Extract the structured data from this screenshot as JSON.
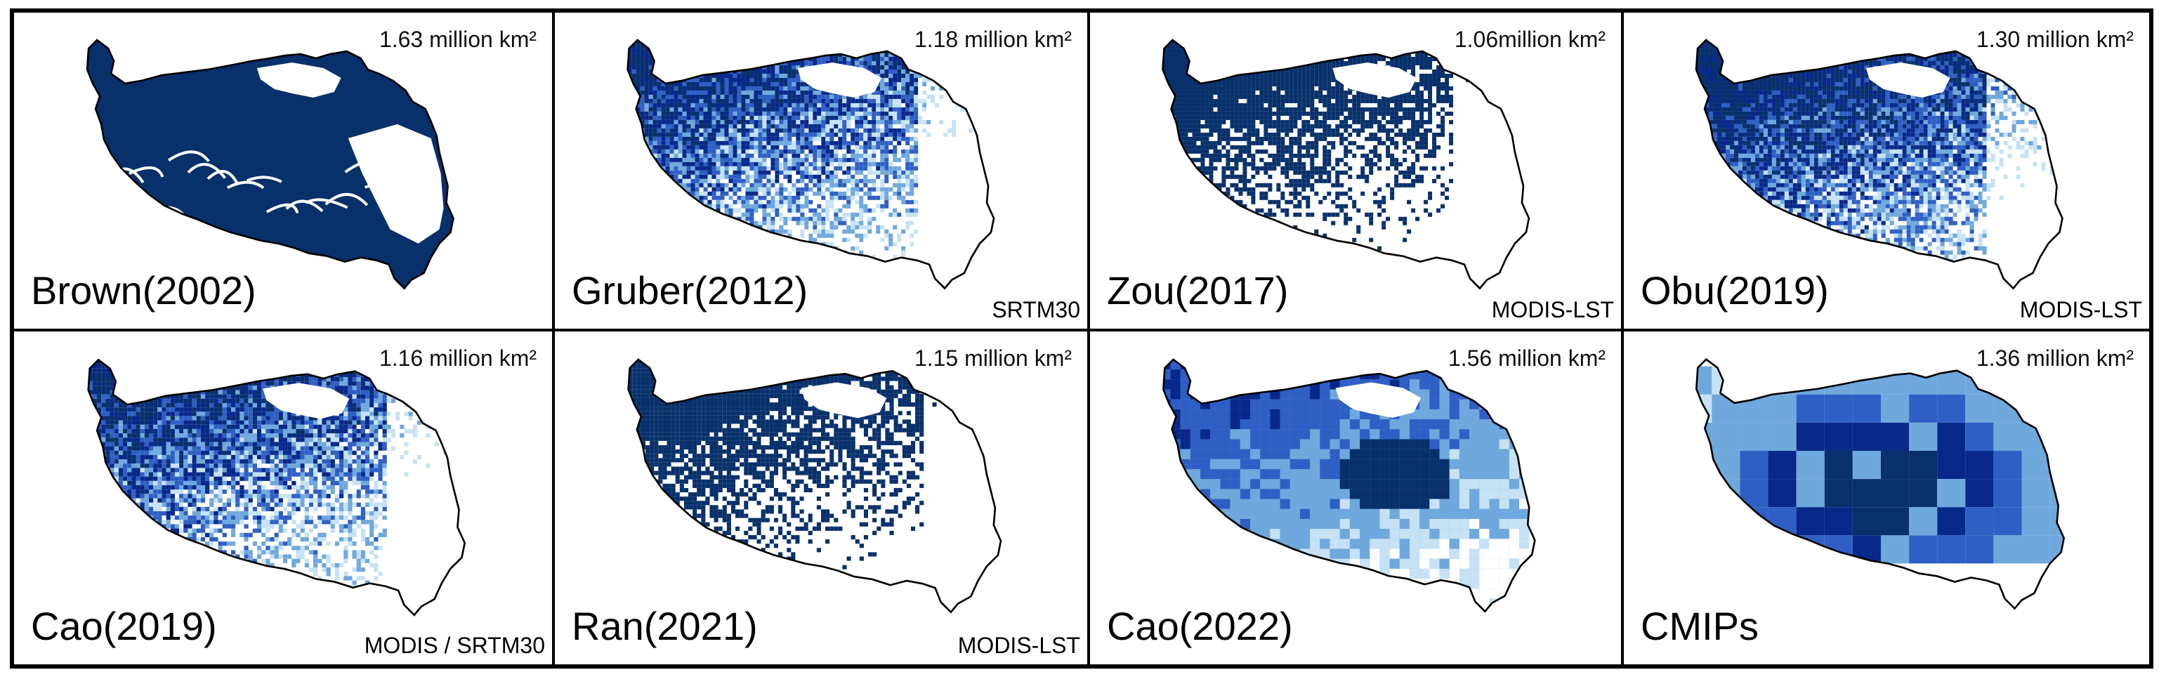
{
  "figure": {
    "panels": [
      {
        "name": "Brown(2002)",
        "area": "1.63 million km²",
        "source": "",
        "style": "solid"
      },
      {
        "name": "Gruber(2012)",
        "area": "1.18 million km²",
        "source": "SRTM30",
        "style": "fine-gradient"
      },
      {
        "name": "Zou(2017)",
        "area": "1.06million km²",
        "source": "MODIS-LST",
        "style": "fine-binary"
      },
      {
        "name": "Obu(2019)",
        "area": "1.30 million km²",
        "source": "MODIS-LST",
        "style": "fine-gradient-light"
      },
      {
        "name": "Cao(2019)",
        "area": "1.16 million km²",
        "source": "MODIS / SRTM30",
        "style": "fine-gradient"
      },
      {
        "name": "Ran(2021)",
        "area": "1.15 million km²",
        "source": "MODIS-LST",
        "style": "fine-binary"
      },
      {
        "name": "Cao(2022)",
        "area": "1.56 million km²",
        "source": "",
        "style": "coarse-gradient"
      },
      {
        "name": "CMIPs",
        "area": "1.36 million km²",
        "source": "",
        "style": "blocky"
      }
    ],
    "colors": {
      "darkest": "#08306b",
      "dark": "#08288a",
      "mid": "#2f5fc4",
      "light": "#6fa8dc",
      "pale": "#c6e2f4",
      "outline": "#000000"
    }
  }
}
